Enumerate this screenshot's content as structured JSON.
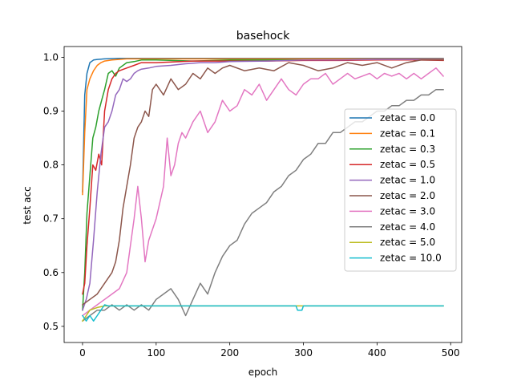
{
  "chart_data": {
    "type": "line",
    "title": "basehock",
    "xlabel": "epoch",
    "ylabel": "test acc",
    "xlim": [
      -25,
      515
    ],
    "ylim": [
      0.47,
      1.02
    ],
    "xticks": [
      0,
      100,
      200,
      300,
      400,
      500
    ],
    "xtick_labels": [
      "0",
      "100",
      "200",
      "300",
      "400",
      "500"
    ],
    "yticks": [
      0.5,
      0.6,
      0.7,
      0.8,
      0.9,
      1.0
    ],
    "ytick_labels": [
      "0.5",
      "0.6",
      "0.7",
      "0.8",
      "0.9",
      "1.0"
    ],
    "grid": false,
    "legend_position": "center-right",
    "series": [
      {
        "name": "zetac = 0.0",
        "color": "#1f77b4",
        "x": [
          0,
          3,
          6,
          10,
          15,
          20,
          30,
          50,
          100,
          200,
          300,
          400,
          490
        ],
        "y": [
          0.75,
          0.93,
          0.97,
          0.99,
          0.995,
          0.996,
          0.997,
          0.998,
          0.998,
          0.998,
          0.998,
          0.998,
          0.998
        ]
      },
      {
        "name": "zetac = 0.1",
        "color": "#ff7f0e",
        "x": [
          0,
          3,
          6,
          10,
          15,
          20,
          25,
          30,
          40,
          60,
          100,
          200,
          300,
          400,
          490
        ],
        "y": [
          0.745,
          0.86,
          0.94,
          0.96,
          0.975,
          0.985,
          0.99,
          0.993,
          0.995,
          0.997,
          0.997,
          0.997,
          0.997,
          0.997,
          0.997
        ]
      },
      {
        "name": "zetac = 0.3",
        "color": "#2ca02c",
        "x": [
          0,
          3,
          6,
          10,
          14,
          18,
          22,
          26,
          30,
          35,
          40,
          45,
          50,
          55,
          60,
          70,
          80,
          100,
          150,
          200,
          300,
          400,
          490
        ],
        "y": [
          0.53,
          0.6,
          0.71,
          0.78,
          0.85,
          0.87,
          0.9,
          0.92,
          0.94,
          0.97,
          0.975,
          0.965,
          0.98,
          0.985,
          0.99,
          0.992,
          0.995,
          0.995,
          0.993,
          0.995,
          0.995,
          0.995,
          0.995
        ]
      },
      {
        "name": "zetac = 0.5",
        "color": "#d62728",
        "x": [
          0,
          3,
          6,
          10,
          14,
          18,
          22,
          26,
          30,
          35,
          40,
          45,
          50,
          60,
          70,
          80,
          100,
          150,
          200,
          250,
          300,
          350,
          400,
          450,
          490
        ],
        "y": [
          0.56,
          0.58,
          0.65,
          0.72,
          0.8,
          0.79,
          0.82,
          0.8,
          0.9,
          0.94,
          0.96,
          0.97,
          0.975,
          0.98,
          0.985,
          0.99,
          0.99,
          0.993,
          0.993,
          0.993,
          0.994,
          0.994,
          0.995,
          0.995,
          0.994
        ]
      },
      {
        "name": "zetac = 1.0",
        "color": "#9467bd",
        "x": [
          0,
          5,
          10,
          15,
          20,
          25,
          30,
          35,
          40,
          45,
          50,
          55,
          60,
          65,
          70,
          75,
          80,
          90,
          100,
          120,
          140,
          160,
          180,
          200,
          250,
          300,
          350,
          400,
          450,
          490
        ],
        "y": [
          0.53,
          0.55,
          0.58,
          0.66,
          0.75,
          0.82,
          0.87,
          0.88,
          0.9,
          0.93,
          0.94,
          0.96,
          0.955,
          0.96,
          0.97,
          0.975,
          0.978,
          0.98,
          0.983,
          0.985,
          0.988,
          0.99,
          0.99,
          0.992,
          0.993,
          0.995,
          0.995,
          0.996,
          0.996,
          0.996
        ]
      },
      {
        "name": "zetac = 2.0",
        "color": "#8c564b",
        "x": [
          0,
          10,
          20,
          30,
          40,
          45,
          50,
          55,
          60,
          65,
          70,
          75,
          80,
          85,
          90,
          95,
          100,
          110,
          120,
          130,
          140,
          150,
          160,
          170,
          180,
          190,
          200,
          220,
          240,
          260,
          280,
          300,
          320,
          340,
          360,
          380,
          400,
          420,
          440,
          460,
          490
        ],
        "y": [
          0.54,
          0.55,
          0.56,
          0.58,
          0.6,
          0.62,
          0.66,
          0.72,
          0.76,
          0.8,
          0.85,
          0.87,
          0.88,
          0.9,
          0.89,
          0.94,
          0.95,
          0.93,
          0.96,
          0.94,
          0.95,
          0.97,
          0.96,
          0.98,
          0.97,
          0.98,
          0.985,
          0.975,
          0.98,
          0.975,
          0.99,
          0.985,
          0.975,
          0.98,
          0.99,
          0.985,
          0.99,
          0.98,
          0.99,
          0.995,
          0.995
        ]
      },
      {
        "name": "zetac = 3.0",
        "color": "#e377c2",
        "x": [
          0,
          10,
          20,
          30,
          40,
          50,
          60,
          65,
          70,
          75,
          80,
          85,
          90,
          95,
          100,
          105,
          110,
          115,
          120,
          125,
          130,
          135,
          140,
          150,
          160,
          170,
          180,
          190,
          200,
          210,
          220,
          230,
          240,
          250,
          260,
          270,
          280,
          290,
          300,
          310,
          320,
          330,
          340,
          350,
          360,
          370,
          380,
          390,
          400,
          410,
          420,
          430,
          440,
          450,
          460,
          470,
          480,
          490
        ],
        "y": [
          0.52,
          0.53,
          0.54,
          0.55,
          0.56,
          0.57,
          0.6,
          0.65,
          0.7,
          0.76,
          0.7,
          0.62,
          0.66,
          0.68,
          0.7,
          0.73,
          0.76,
          0.85,
          0.78,
          0.8,
          0.84,
          0.86,
          0.85,
          0.88,
          0.9,
          0.86,
          0.88,
          0.92,
          0.9,
          0.91,
          0.94,
          0.93,
          0.95,
          0.92,
          0.94,
          0.96,
          0.94,
          0.93,
          0.95,
          0.96,
          0.96,
          0.97,
          0.95,
          0.96,
          0.97,
          0.96,
          0.965,
          0.97,
          0.96,
          0.97,
          0.965,
          0.97,
          0.96,
          0.97,
          0.96,
          0.97,
          0.98,
          0.965
        ]
      },
      {
        "name": "zetac = 4.0",
        "color": "#7f7f7f",
        "x": [
          0,
          10,
          20,
          30,
          40,
          50,
          60,
          70,
          80,
          90,
          100,
          110,
          120,
          130,
          140,
          150,
          160,
          170,
          180,
          190,
          200,
          210,
          220,
          230,
          240,
          250,
          260,
          270,
          280,
          290,
          300,
          310,
          320,
          330,
          340,
          350,
          360,
          370,
          380,
          390,
          400,
          410,
          420,
          430,
          440,
          450,
          460,
          470,
          480,
          490
        ],
        "y": [
          0.51,
          0.52,
          0.53,
          0.53,
          0.54,
          0.53,
          0.54,
          0.53,
          0.54,
          0.53,
          0.55,
          0.56,
          0.57,
          0.55,
          0.52,
          0.55,
          0.58,
          0.56,
          0.6,
          0.63,
          0.65,
          0.66,
          0.69,
          0.71,
          0.72,
          0.73,
          0.75,
          0.76,
          0.78,
          0.79,
          0.81,
          0.82,
          0.84,
          0.84,
          0.86,
          0.86,
          0.87,
          0.88,
          0.88,
          0.89,
          0.9,
          0.9,
          0.91,
          0.91,
          0.92,
          0.92,
          0.93,
          0.93,
          0.94,
          0.94
        ]
      },
      {
        "name": "zetac = 5.0",
        "color": "#bcbd22",
        "x": [
          0,
          5,
          10,
          20,
          30,
          40,
          60,
          100,
          200,
          300,
          400,
          490
        ],
        "y": [
          0.51,
          0.52,
          0.53,
          0.535,
          0.538,
          0.538,
          0.538,
          0.538,
          0.538,
          0.538,
          0.538,
          0.538
        ]
      },
      {
        "name": "zetac = 10.0",
        "color": "#17becf",
        "x": [
          0,
          5,
          10,
          15,
          20,
          25,
          30,
          35,
          40,
          60,
          100,
          200,
          290,
          292,
          298,
          300,
          400,
          490
        ],
        "y": [
          0.52,
          0.51,
          0.52,
          0.51,
          0.52,
          0.53,
          0.54,
          0.538,
          0.538,
          0.538,
          0.538,
          0.538,
          0.538,
          0.53,
          0.53,
          0.538,
          0.538,
          0.538
        ]
      }
    ]
  }
}
